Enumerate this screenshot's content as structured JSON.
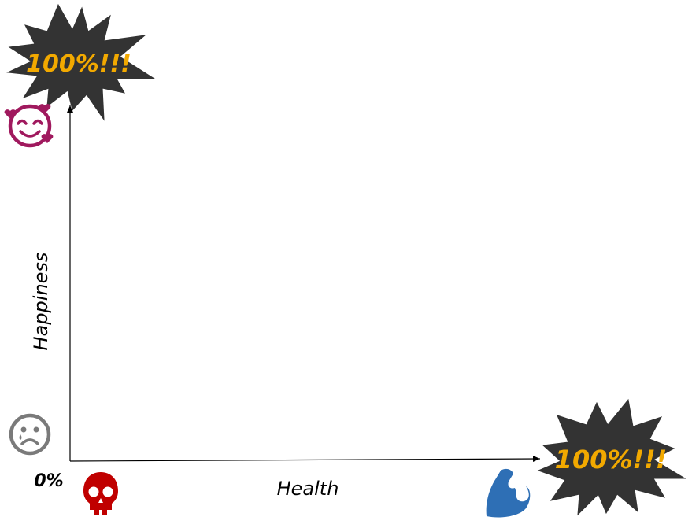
{
  "axes": {
    "x_label": "Health",
    "y_label": "Happiness",
    "origin_label": "0%"
  },
  "bursts": {
    "top_text": "100%!!!",
    "right_text": "100%!!!",
    "fill_color": "#333333",
    "text_color": "#f2a900"
  },
  "icons": {
    "happy": "smiling-face-with-hearts-icon",
    "sad": "sad-face-icon",
    "dead": "skull-icon",
    "strong": "flexed-biceps-icon"
  },
  "colors": {
    "happy_face": "#a0195e",
    "sad_face": "#7a7a7a",
    "skull": "#c00000",
    "biceps": "#2e6fb5",
    "axis": "#000000"
  }
}
